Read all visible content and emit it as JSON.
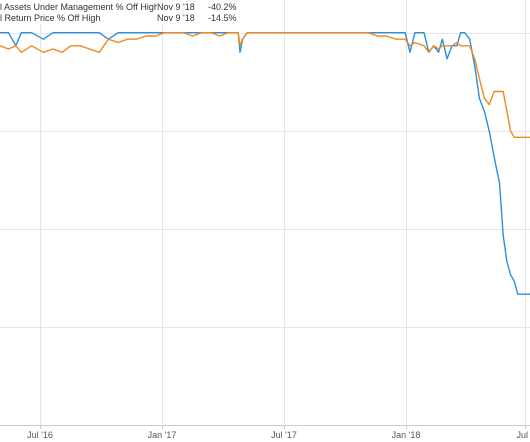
{
  "legend": [
    {
      "name": "l Assets Under Management % Off High",
      "date": "Nov 9 '18",
      "value": "-40.2%",
      "color": "#2b8fe0"
    },
    {
      "name": "l Return Price % Off High",
      "date": "Nov 9 '18",
      "value": "-14.5%",
      "color": "#f08a1c"
    }
  ],
  "chart_data": {
    "type": "line",
    "x_ticks": [
      "Jul '16",
      "Jan '17",
      "Jul '17",
      "Jan '18",
      "Jul"
    ],
    "xlim": [
      "2016-03-10",
      "2018-07-28"
    ],
    "ylim": [
      -60,
      5
    ],
    "grid": true,
    "series": [
      {
        "name": "l Assets Under Management % Off High",
        "color": "#2b8fe0",
        "points": [
          [
            "2016-03-10",
            0
          ],
          [
            "2016-03-24",
            0
          ],
          [
            "2016-04-05",
            -2
          ],
          [
            "2016-04-14",
            0
          ],
          [
            "2016-05-01",
            0
          ],
          [
            "2016-05-20",
            -1
          ],
          [
            "2016-06-05",
            0
          ],
          [
            "2016-06-20",
            0
          ],
          [
            "2016-07-04",
            0
          ],
          [
            "2016-07-20",
            0
          ],
          [
            "2016-08-04",
            0
          ],
          [
            "2016-08-20",
            0
          ],
          [
            "2016-09-04",
            -1
          ],
          [
            "2016-09-20",
            0
          ],
          [
            "2016-10-05",
            0
          ],
          [
            "2016-10-20",
            0
          ],
          [
            "2016-11-05",
            0
          ],
          [
            "2016-11-20",
            0
          ],
          [
            "2016-12-05",
            0
          ],
          [
            "2016-12-20",
            0
          ],
          [
            "2017-01-05",
            0
          ],
          [
            "2017-01-20",
            0
          ],
          [
            "2017-02-04",
            0
          ],
          [
            "2017-02-20",
            0
          ],
          [
            "2017-03-05",
            0
          ],
          [
            "2017-03-20",
            0
          ],
          [
            "2017-04-05",
            0
          ],
          [
            "2017-04-08",
            -3
          ],
          [
            "2017-04-12",
            -1
          ],
          [
            "2017-04-20",
            0
          ],
          [
            "2017-05-04",
            0
          ],
          [
            "2017-05-20",
            0
          ],
          [
            "2017-06-04",
            0
          ],
          [
            "2017-06-20",
            0
          ],
          [
            "2017-07-05",
            0
          ],
          [
            "2017-07-20",
            0
          ],
          [
            "2017-08-04",
            0
          ],
          [
            "2017-08-20",
            0
          ],
          [
            "2017-09-04",
            0
          ],
          [
            "2017-09-20",
            0
          ],
          [
            "2017-10-04",
            0
          ],
          [
            "2017-10-20",
            0
          ],
          [
            "2017-11-04",
            0
          ],
          [
            "2017-11-20",
            0
          ],
          [
            "2017-12-04",
            0
          ],
          [
            "2017-12-20",
            0
          ],
          [
            "2018-01-04",
            0
          ],
          [
            "2018-01-12",
            -3
          ],
          [
            "2018-01-20",
            0
          ],
          [
            "2018-02-04",
            0
          ],
          [
            "2018-02-12",
            -3
          ],
          [
            "2018-02-20",
            -2
          ],
          [
            "2018-02-28",
            -3
          ],
          [
            "2018-03-06",
            -1
          ],
          [
            "2018-03-14",
            -4
          ],
          [
            "2018-03-22",
            -2
          ],
          [
            "2018-03-30",
            -2
          ],
          [
            "2018-04-05",
            0
          ],
          [
            "2018-04-12",
            0
          ],
          [
            "2018-04-20",
            -1
          ],
          [
            "2018-04-28",
            -5
          ],
          [
            "2018-05-06",
            -10
          ],
          [
            "2018-05-14",
            -12
          ],
          [
            "2018-05-22",
            -15
          ],
          [
            "2018-05-30",
            -19
          ],
          [
            "2018-06-08",
            -23
          ],
          [
            "2018-06-14",
            -31
          ],
          [
            "2018-06-20",
            -35
          ],
          [
            "2018-06-26",
            -37
          ],
          [
            "2018-07-02",
            -38
          ],
          [
            "2018-07-08",
            -40
          ],
          [
            "2018-07-14",
            -40
          ],
          [
            "2018-07-28",
            -40
          ]
        ]
      },
      {
        "name": "l Return Price % Off High",
        "color": "#f08a1c",
        "points": [
          [
            "2016-03-10",
            -2
          ],
          [
            "2016-03-24",
            -2.5
          ],
          [
            "2016-04-05",
            -2
          ],
          [
            "2016-04-14",
            -3
          ],
          [
            "2016-05-01",
            -2
          ],
          [
            "2016-05-20",
            -3
          ],
          [
            "2016-06-05",
            -2.5
          ],
          [
            "2016-06-20",
            -3
          ],
          [
            "2016-07-04",
            -2
          ],
          [
            "2016-07-20",
            -2
          ],
          [
            "2016-08-04",
            -2.5
          ],
          [
            "2016-08-20",
            -3
          ],
          [
            "2016-09-04",
            -1
          ],
          [
            "2016-09-20",
            -1.5
          ],
          [
            "2016-10-05",
            -1
          ],
          [
            "2016-10-20",
            -1
          ],
          [
            "2016-11-05",
            -0.5
          ],
          [
            "2016-11-20",
            -0.5
          ],
          [
            "2016-12-05",
            0
          ],
          [
            "2016-12-20",
            0
          ],
          [
            "2017-01-05",
            0
          ],
          [
            "2017-01-20",
            -0.5
          ],
          [
            "2017-02-04",
            0
          ],
          [
            "2017-02-20",
            0
          ],
          [
            "2017-03-05",
            -0.5
          ],
          [
            "2017-03-20",
            0
          ],
          [
            "2017-04-05",
            0
          ],
          [
            "2017-04-08",
            -2
          ],
          [
            "2017-04-12",
            -1
          ],
          [
            "2017-04-20",
            0
          ],
          [
            "2017-05-04",
            0
          ],
          [
            "2017-05-20",
            0
          ],
          [
            "2017-06-04",
            0
          ],
          [
            "2017-06-20",
            0
          ],
          [
            "2017-07-05",
            0
          ],
          [
            "2017-07-20",
            0
          ],
          [
            "2017-08-04",
            0
          ],
          [
            "2017-08-20",
            0
          ],
          [
            "2017-09-04",
            0
          ],
          [
            "2017-09-20",
            0
          ],
          [
            "2017-10-04",
            0
          ],
          [
            "2017-10-20",
            0
          ],
          [
            "2017-11-04",
            0
          ],
          [
            "2017-11-20",
            -0.5
          ],
          [
            "2017-12-04",
            -0.5
          ],
          [
            "2017-12-20",
            -1
          ],
          [
            "2018-01-04",
            -1
          ],
          [
            "2018-01-12",
            -2
          ],
          [
            "2018-01-20",
            -1.5
          ],
          [
            "2018-02-04",
            -2
          ],
          [
            "2018-02-12",
            -3
          ],
          [
            "2018-02-20",
            -2
          ],
          [
            "2018-02-28",
            -2.5
          ],
          [
            "2018-03-06",
            -2
          ],
          [
            "2018-03-14",
            -2
          ],
          [
            "2018-03-22",
            -2
          ],
          [
            "2018-03-30",
            -1.5
          ],
          [
            "2018-04-05",
            -2
          ],
          [
            "2018-04-12",
            -2
          ],
          [
            "2018-04-20",
            -2
          ],
          [
            "2018-04-28",
            -4
          ],
          [
            "2018-05-06",
            -7
          ],
          [
            "2018-05-14",
            -10
          ],
          [
            "2018-05-22",
            -11
          ],
          [
            "2018-05-30",
            -9
          ],
          [
            "2018-06-08",
            -9
          ],
          [
            "2018-06-14",
            -9
          ],
          [
            "2018-06-20",
            -12
          ],
          [
            "2018-06-26",
            -15
          ],
          [
            "2018-07-02",
            -16
          ],
          [
            "2018-07-08",
            -16
          ],
          [
            "2018-07-14",
            -16
          ],
          [
            "2018-07-28",
            -16
          ]
        ]
      }
    ]
  }
}
